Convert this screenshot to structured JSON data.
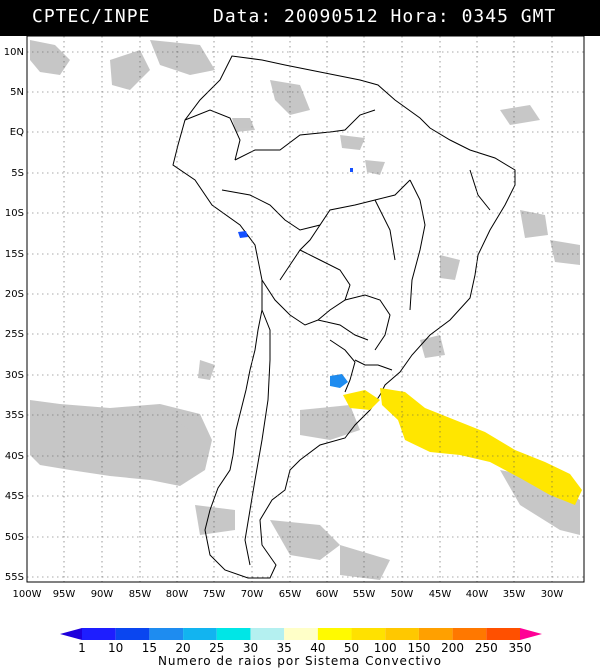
{
  "header": {
    "source": "CPTEC/INPE",
    "datetime": "Data: 20090512 Hora: 0345 GMT"
  },
  "axes": {
    "lat_labels": [
      "10N",
      "5N",
      "EQ",
      "5S",
      "10S",
      "15S",
      "20S",
      "25S",
      "30S",
      "35S",
      "40S",
      "45S",
      "50S",
      "55S"
    ],
    "lon_labels": [
      "100W",
      "95W",
      "90W",
      "85W",
      "80W",
      "75W",
      "70W",
      "65W",
      "60W",
      "55W",
      "50W",
      "45W",
      "40W",
      "35W",
      "30W"
    ]
  },
  "legend": {
    "title": "Numero de raios por Sistema Convectivo",
    "bins": [
      {
        "label": "1",
        "color": "#1e1eff"
      },
      {
        "label": "10",
        "color": "#0a46f0"
      },
      {
        "label": "15",
        "color": "#1e8cf0"
      },
      {
        "label": "20",
        "color": "#12b4f0"
      },
      {
        "label": "25",
        "color": "#00e6e6"
      },
      {
        "label": "30",
        "color": "#b4f0f0"
      },
      {
        "label": "35",
        "color": "#ffffc8"
      },
      {
        "label": "40",
        "color": "#fffa00"
      },
      {
        "label": "50",
        "color": "#ffe100"
      },
      {
        "label": "100",
        "color": "#ffc800"
      },
      {
        "label": "150",
        "color": "#ffa000"
      },
      {
        "label": "200",
        "color": "#ff7800"
      },
      {
        "label": "250",
        "color": "#ff5000"
      },
      {
        "label": "350",
        "color": "#ff1414"
      }
    ],
    "end_color_left": "#1e00dc",
    "end_color_right": "#ff0096"
  },
  "colors": {
    "cloud": "#bdbdbd",
    "convective_blue": "#1450ff",
    "convective_yellow": "#ffe600"
  }
}
